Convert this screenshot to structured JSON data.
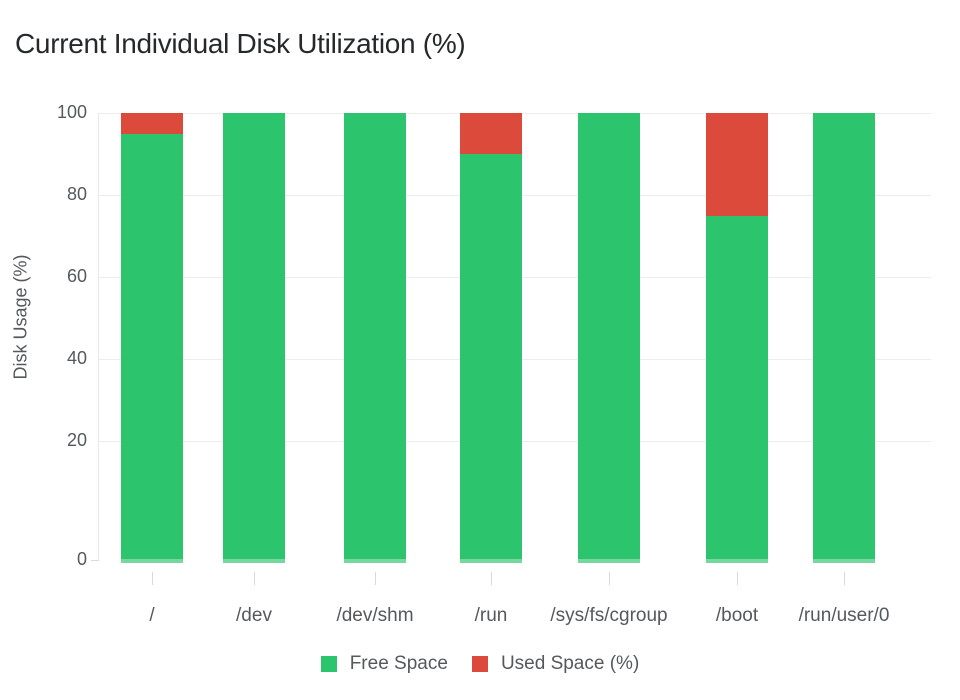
{
  "title": "Current Individual Disk Utilization (%)",
  "y_axis": {
    "title": "Disk Usage (%)",
    "tick_labels": [
      "100",
      "80",
      "60",
      "40",
      "20",
      "0"
    ]
  },
  "x_axis": {
    "categories": [
      "/",
      "/dev",
      "/dev/shm",
      "/run",
      "/sys/fs/cgroup",
      "/boot",
      "/run/user/0"
    ]
  },
  "legend": {
    "items": [
      {
        "label": "Free Space",
        "color": "#2dc46e"
      },
      {
        "label": "Used Space (%)",
        "color": "#dc4a3c"
      }
    ]
  },
  "colors": {
    "free": "#2dc46e",
    "used": "#dc4a3c",
    "grid": "#ededed",
    "axis_line": "#e9e9e9",
    "label_text": "#55595d",
    "title_text": "#26292c"
  },
  "chart_data": {
    "type": "bar",
    "stacked": true,
    "title": "Current Individual Disk Utilization (%)",
    "ylabel": "Disk Usage (%)",
    "xlabel": "",
    "ylim": [
      0,
      100
    ],
    "yticks": [
      100,
      80,
      60,
      40,
      20,
      0
    ],
    "grid": true,
    "legend_position": "bottom",
    "categories": [
      "/",
      "/dev",
      "/dev/shm",
      "/run",
      "/sys/fs/cgroup",
      "/boot",
      "/run/user/0"
    ],
    "series": [
      {
        "name": "Free Space",
        "color": "#2dc46e",
        "values": [
          95,
          100,
          100,
          90,
          100,
          75,
          100
        ]
      },
      {
        "name": "Used Space (%)",
        "color": "#dc4a3c",
        "values": [
          5,
          0,
          0,
          10,
          0,
          25,
          0
        ]
      }
    ]
  }
}
